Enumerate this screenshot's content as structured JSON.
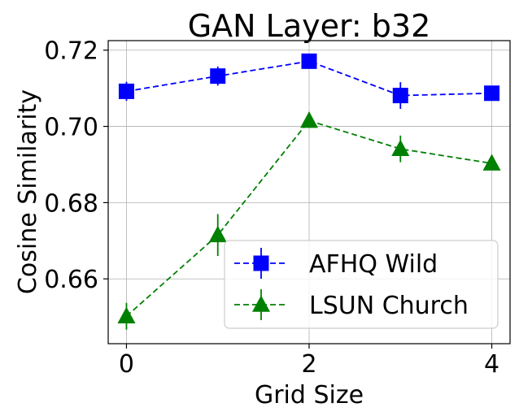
{
  "chart_data": {
    "type": "line",
    "title": "GAN Layer: b32",
    "xlabel": "Grid Size",
    "ylabel": "Cosine Similarity",
    "x": [
      0,
      1,
      2,
      3,
      4
    ],
    "xticks": [
      "0",
      "2",
      "4"
    ],
    "yticks": [
      "0.66",
      "0.68",
      "0.70",
      "0.72"
    ],
    "xlim": [
      -0.2,
      4.2
    ],
    "ylim": [
      0.643,
      0.7225
    ],
    "grid": true,
    "legend_position": "lower-right",
    "series": [
      {
        "name": "AFHQ Wild",
        "color": "#0000ff",
        "marker": "square",
        "values": [
          0.7092,
          0.7132,
          0.7171,
          0.7081,
          0.7087
        ],
        "errors": [
          0.0025,
          0.0025,
          0.0015,
          0.0035,
          0.0015
        ]
      },
      {
        "name": "LSUN Church",
        "color": "#008000",
        "marker": "triangle",
        "values": [
          0.6502,
          0.6715,
          0.7015,
          0.6941,
          0.6903
        ],
        "errors": [
          0.0035,
          0.0055,
          0.0015,
          0.0035,
          0.0015
        ]
      }
    ]
  }
}
